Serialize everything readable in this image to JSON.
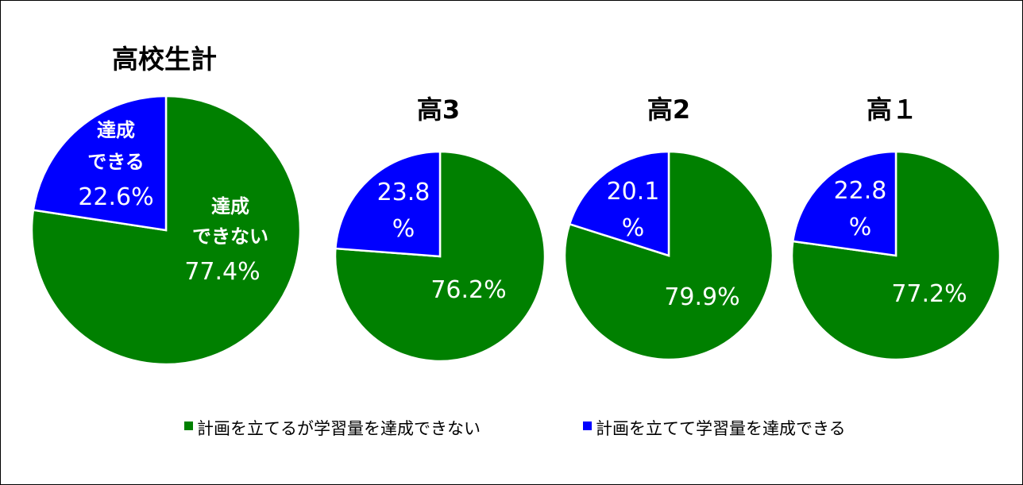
{
  "chart_data": {
    "type": "pie",
    "colors": {
      "not_achieved": "#008000",
      "achieved": "#0000FF"
    },
    "charts": [
      {
        "title": "高校生計",
        "slices": [
          {
            "key": "not_achieved",
            "label_lines": [
              "達成",
              "できない"
            ],
            "value_text": "77.4%",
            "value": 77.4
          },
          {
            "key": "achieved",
            "label_lines": [
              "達成",
              "できる"
            ],
            "value_text": "22.6%",
            "value": 22.6
          }
        ]
      },
      {
        "title": "高3",
        "slices": [
          {
            "key": "not_achieved",
            "value_text": "76.2%",
            "value": 76.2
          },
          {
            "key": "achieved",
            "value_lines": [
              "23.8",
              "%"
            ],
            "value": 23.8
          }
        ]
      },
      {
        "title": "高2",
        "slices": [
          {
            "key": "not_achieved",
            "value_text": "79.9%",
            "value": 79.9
          },
          {
            "key": "achieved",
            "value_lines": [
              "20.1",
              "%"
            ],
            "value": 20.1
          }
        ]
      },
      {
        "title": "高１",
        "slices": [
          {
            "key": "not_achieved",
            "value_text": "77.2%",
            "value": 77.2
          },
          {
            "key": "achieved",
            "value_lines": [
              "22.8",
              "%"
            ],
            "value": 22.8
          }
        ]
      }
    ],
    "legend": [
      {
        "key": "not_achieved",
        "label": "計画を立てるが学習量を達成できない"
      },
      {
        "key": "achieved",
        "label": "計画を立てて学習量を達成できる"
      }
    ]
  }
}
